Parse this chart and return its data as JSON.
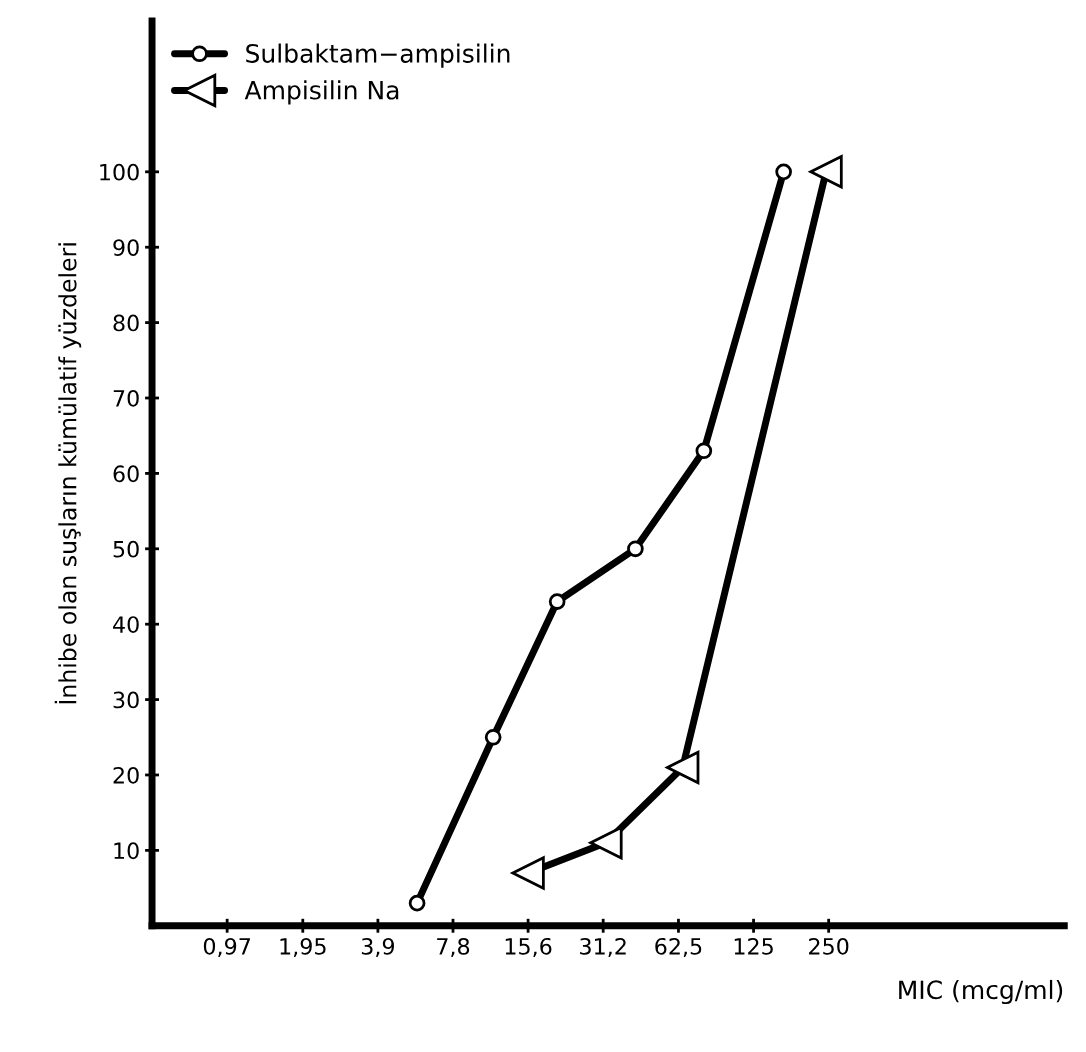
{
  "chart_data": {
    "type": "line",
    "xlabel": "MIC (mcg/ml)",
    "ylabel": "İnhibe olan suşların kümülatif yüzdeleri",
    "log": "x",
    "xlim": [
      0.485,
      2200
    ],
    "xticks": [
      {
        "value": 0.97,
        "label": "0,97"
      },
      {
        "value": 1.95,
        "label": "1,95"
      },
      {
        "value": 3.9,
        "label": "3,9"
      },
      {
        "value": 7.8,
        "label": "7,8"
      },
      {
        "value": 15.6,
        "label": "15,6"
      },
      {
        "value": 31.2,
        "label": "31,2"
      },
      {
        "value": 62.5,
        "label": "62,5"
      },
      {
        "value": 125,
        "label": "125"
      },
      {
        "value": 250,
        "label": "250"
      }
    ],
    "ylim": [
      0,
      120
    ],
    "yticks": [
      10,
      20,
      30,
      40,
      50,
      60,
      70,
      80,
      90,
      100
    ],
    "grid": false,
    "legend": "top left",
    "series": [
      {
        "name": "Sulbaktam−ampisilin",
        "color": "#000000",
        "marker": "circle",
        "x": [
          5.6,
          11.3,
          20.4,
          42,
          79,
          165
        ],
        "values": [
          3,
          25,
          43,
          50,
          63,
          100
        ]
      },
      {
        "name": "Ampisilin Na",
        "color": "#000000",
        "marker": "triangle",
        "x": [
          15.6,
          32,
          65,
          244
        ],
        "values": [
          7,
          11,
          21,
          100
        ]
      }
    ]
  }
}
